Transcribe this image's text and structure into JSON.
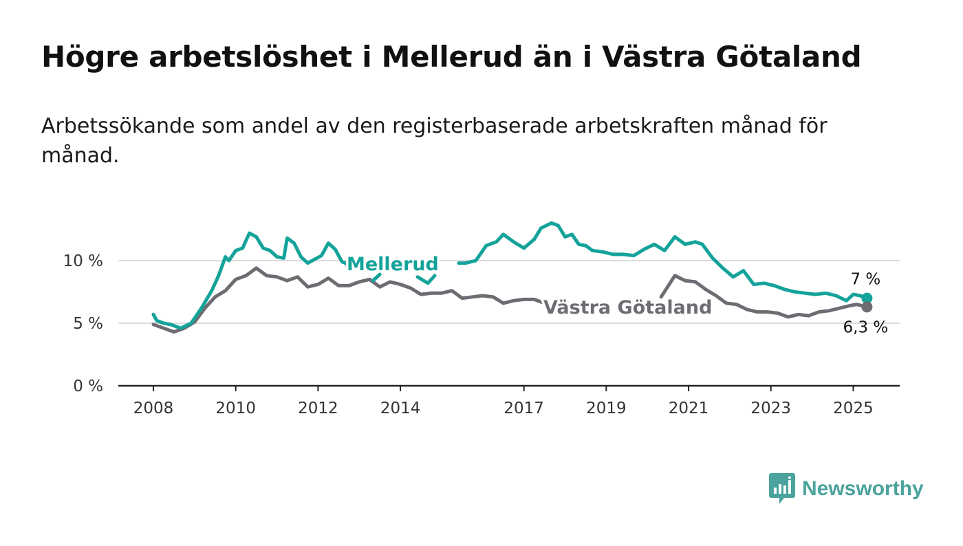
{
  "title": "Högre arbetslöshet i Mellerud än i Västra Götaland",
  "subtitle": "Arbetssökande som andel av den registerbaserade arbetskraften månad för månad.",
  "logo": {
    "text": "Newsworthy",
    "icon": "newsworthy-logo-icon",
    "color": "#4aa39c"
  },
  "chart_data": {
    "type": "line",
    "x_type": "date",
    "xlim": [
      "2007-03",
      "2026-03"
    ],
    "ylim": [
      0,
      13.5
    ],
    "y_ticks": [
      0,
      5,
      10
    ],
    "y_tick_labels": [
      "0 %",
      "5 %",
      "10 %"
    ],
    "x_ticks": [
      2008,
      2010,
      2012,
      2014,
      2017,
      2019,
      2021,
      2023,
      2025
    ],
    "x_tick_labels": [
      "2008",
      "2010",
      "2012",
      "2014",
      "2017",
      "2019",
      "2021",
      "2023",
      "2025"
    ],
    "grid": "horizontal",
    "legend": "inline labels",
    "series": [
      {
        "name": "Mellerud",
        "color": "#14a39a",
        "end_label": "7 %",
        "points": [
          [
            "2008-01",
            5.7
          ],
          [
            "2008-02",
            5.2
          ],
          [
            "2008-04",
            5.0
          ],
          [
            "2008-06",
            4.9
          ],
          [
            "2008-09",
            4.6
          ],
          [
            "2008-12",
            5.0
          ],
          [
            "2009-03",
            6.2
          ],
          [
            "2009-06",
            7.6
          ],
          [
            "2009-08",
            8.8
          ],
          [
            "2009-10",
            10.3
          ],
          [
            "2009-11",
            10.0
          ],
          [
            "2010-01",
            10.8
          ],
          [
            "2010-03",
            11.0
          ],
          [
            "2010-05",
            12.2
          ],
          [
            "2010-07",
            11.9
          ],
          [
            "2010-09",
            11.0
          ],
          [
            "2010-11",
            10.8
          ],
          [
            "2011-01",
            10.3
          ],
          [
            "2011-03",
            10.2
          ],
          [
            "2011-04",
            11.8
          ],
          [
            "2011-06",
            11.4
          ],
          [
            "2011-08",
            10.3
          ],
          [
            "2011-10",
            9.8
          ],
          [
            "2011-12",
            10.1
          ],
          [
            "2012-02",
            10.4
          ],
          [
            "2012-04",
            11.4
          ],
          [
            "2012-06",
            10.9
          ],
          [
            "2012-08",
            9.9
          ],
          [
            "2012-09",
            9.8
          ],
          [
            "2012-11",
            9.3
          ],
          [
            "2013-05",
            null
          ],
          [
            "2013-05",
            8.4
          ],
          [
            "2013-07",
            8.9
          ],
          [
            "2013-09",
            null
          ],
          [
            "2014-06",
            8.7
          ],
          [
            "2014-09",
            8.2
          ],
          [
            "2014-11",
            8.8
          ],
          [
            "2015-02",
            null
          ],
          [
            "2015-06",
            9.8
          ],
          [
            "2015-08",
            9.8
          ],
          [
            "2015-11",
            10.0
          ],
          [
            "2016-02",
            11.2
          ],
          [
            "2016-05",
            11.5
          ],
          [
            "2016-07",
            12.1
          ],
          [
            "2016-10",
            11.5
          ],
          [
            "2017-01",
            11.0
          ],
          [
            "2017-04",
            11.7
          ],
          [
            "2017-06",
            12.6
          ],
          [
            "2017-09",
            13.0
          ],
          [
            "2017-11",
            12.8
          ],
          [
            "2018-01",
            11.9
          ],
          [
            "2018-03",
            12.1
          ],
          [
            "2018-05",
            11.3
          ],
          [
            "2018-07",
            11.2
          ],
          [
            "2018-09",
            10.8
          ],
          [
            "2018-12",
            10.7
          ],
          [
            "2019-03",
            10.5
          ],
          [
            "2019-06",
            10.5
          ],
          [
            "2019-09",
            10.4
          ],
          [
            "2019-12",
            10.9
          ],
          [
            "2020-03",
            11.3
          ],
          [
            "2020-06",
            10.8
          ],
          [
            "2020-09",
            11.9
          ],
          [
            "2020-12",
            11.3
          ],
          [
            "2021-03",
            11.5
          ],
          [
            "2021-05",
            11.3
          ],
          [
            "2021-08",
            10.2
          ],
          [
            "2021-11",
            9.4
          ],
          [
            "2022-02",
            8.7
          ],
          [
            "2022-05",
            9.2
          ],
          [
            "2022-08",
            8.1
          ],
          [
            "2022-11",
            8.2
          ],
          [
            "2023-02",
            8.0
          ],
          [
            "2023-05",
            7.7
          ],
          [
            "2023-08",
            7.5
          ],
          [
            "2023-11",
            7.4
          ],
          [
            "2024-02",
            7.3
          ],
          [
            "2024-05",
            7.4
          ],
          [
            "2024-08",
            7.2
          ],
          [
            "2024-11",
            6.8
          ],
          [
            "2025-01",
            7.3
          ],
          [
            "2025-03",
            7.2
          ],
          [
            "2025-05",
            7.0
          ]
        ]
      },
      {
        "name": "Västra Götaland",
        "color": "#6e6b72",
        "end_label": "6,3 %",
        "points": [
          [
            "2008-01",
            4.9
          ],
          [
            "2008-04",
            4.6
          ],
          [
            "2008-07",
            4.3
          ],
          [
            "2008-10",
            4.6
          ],
          [
            "2009-01",
            5.1
          ],
          [
            "2009-04",
            6.2
          ],
          [
            "2009-07",
            7.1
          ],
          [
            "2009-10",
            7.6
          ],
          [
            "2010-01",
            8.5
          ],
          [
            "2010-04",
            8.8
          ],
          [
            "2010-07",
            9.4
          ],
          [
            "2010-10",
            8.8
          ],
          [
            "2011-01",
            8.7
          ],
          [
            "2011-04",
            8.4
          ],
          [
            "2011-07",
            8.7
          ],
          [
            "2011-10",
            7.9
          ],
          [
            "2012-01",
            8.1
          ],
          [
            "2012-04",
            8.6
          ],
          [
            "2012-07",
            8.0
          ],
          [
            "2012-10",
            8.0
          ],
          [
            "2013-01",
            8.3
          ],
          [
            "2013-04",
            8.5
          ],
          [
            "2013-07",
            7.9
          ],
          [
            "2013-10",
            8.3
          ],
          [
            "2014-01",
            8.1
          ],
          [
            "2014-04",
            7.8
          ],
          [
            "2014-07",
            7.3
          ],
          [
            "2014-10",
            7.4
          ],
          [
            "2015-01",
            7.4
          ],
          [
            "2015-04",
            7.6
          ],
          [
            "2015-07",
            7.0
          ],
          [
            "2015-10",
            7.1
          ],
          [
            "2016-01",
            7.2
          ],
          [
            "2016-04",
            7.1
          ],
          [
            "2016-07",
            6.6
          ],
          [
            "2016-10",
            6.8
          ],
          [
            "2017-01",
            6.9
          ],
          [
            "2017-04",
            6.9
          ],
          [
            "2017-07",
            6.6
          ],
          [
            "2017-09",
            6.5
          ],
          [
            "2017-10",
            null
          ],
          [
            "2020-05",
            7.1
          ],
          [
            "2020-09",
            8.8
          ],
          [
            "2020-12",
            8.4
          ],
          [
            "2021-03",
            8.3
          ],
          [
            "2021-06",
            7.7
          ],
          [
            "2021-09",
            7.2
          ],
          [
            "2021-12",
            6.6
          ],
          [
            "2022-03",
            6.5
          ],
          [
            "2022-06",
            6.1
          ],
          [
            "2022-09",
            5.9
          ],
          [
            "2022-12",
            5.9
          ],
          [
            "2023-03",
            5.8
          ],
          [
            "2023-06",
            5.5
          ],
          [
            "2023-09",
            5.7
          ],
          [
            "2023-12",
            5.6
          ],
          [
            "2024-03",
            5.9
          ],
          [
            "2024-06",
            6.0
          ],
          [
            "2024-09",
            6.2
          ],
          [
            "2024-12",
            6.4
          ],
          [
            "2025-02",
            6.5
          ],
          [
            "2025-05",
            6.3
          ]
        ]
      }
    ]
  }
}
